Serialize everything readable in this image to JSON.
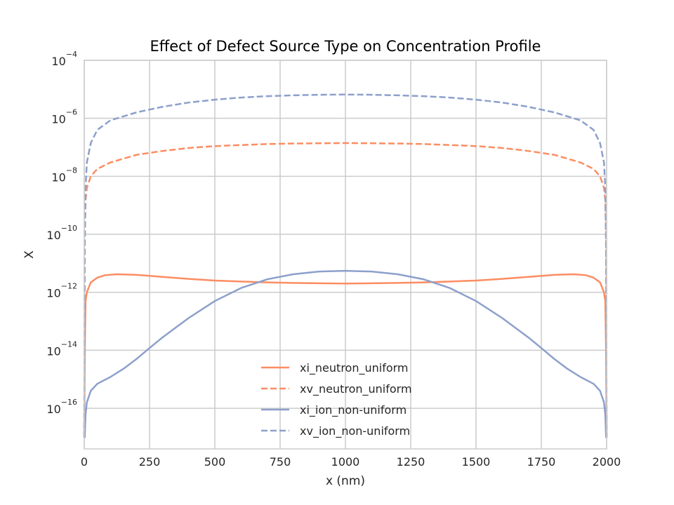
{
  "chart_data": {
    "type": "line",
    "title": "Effect of Defect Source Type on Concentration Profile",
    "xlabel": "x (nm)",
    "ylabel": "X",
    "xlim": [
      0,
      2000
    ],
    "ylim_log10": [
      -17.4,
      -4
    ],
    "yscale": "log",
    "grid": true,
    "legend_position": "lower-center",
    "x_ticks": [
      0,
      250,
      500,
      750,
      1000,
      1250,
      1500,
      1750,
      2000
    ],
    "y_tick_exponents": [
      -4,
      -6,
      -8,
      -10,
      -12,
      -14,
      -16
    ],
    "y_tick_base": "10",
    "series": [
      {
        "name": "xi_neutron_uniform",
        "color": "#fc8d62",
        "style": "solid",
        "points": [
          [
            0,
            1e-17
          ],
          [
            2,
            1e-14
          ],
          [
            5,
            5e-13
          ],
          [
            10,
            1e-12
          ],
          [
            25,
            2.2e-12
          ],
          [
            50,
            3.2e-12
          ],
          [
            80,
            3.9e-12
          ],
          [
            125,
            4.2e-12
          ],
          [
            200,
            4e-12
          ],
          [
            300,
            3.4e-12
          ],
          [
            400,
            2.9e-12
          ],
          [
            500,
            2.55e-12
          ],
          [
            600,
            2.35e-12
          ],
          [
            700,
            2.2e-12
          ],
          [
            800,
            2.1e-12
          ],
          [
            900,
            2.05e-12
          ],
          [
            1000,
            2e-12
          ],
          [
            1100,
            2.05e-12
          ],
          [
            1200,
            2.1e-12
          ],
          [
            1300,
            2.2e-12
          ],
          [
            1400,
            2.35e-12
          ],
          [
            1500,
            2.55e-12
          ],
          [
            1600,
            2.9e-12
          ],
          [
            1700,
            3.4e-12
          ],
          [
            1800,
            4e-12
          ],
          [
            1875,
            4.2e-12
          ],
          [
            1920,
            3.9e-12
          ],
          [
            1950,
            3.2e-12
          ],
          [
            1975,
            2.2e-12
          ],
          [
            1990,
            1e-12
          ],
          [
            1995,
            5e-13
          ],
          [
            1998,
            1e-14
          ],
          [
            2000,
            1e-17
          ]
        ]
      },
      {
        "name": "xv_neutron_uniform",
        "color": "#fc8d62",
        "style": "dashed",
        "points": [
          [
            0,
            1e-17
          ],
          [
            2,
            1e-10
          ],
          [
            5,
            1.5e-09
          ],
          [
            10,
            4e-09
          ],
          [
            25,
            1e-08
          ],
          [
            50,
            1.8e-08
          ],
          [
            100,
            3e-08
          ],
          [
            200,
            5.5e-08
          ],
          [
            300,
            7.5e-08
          ],
          [
            400,
            9.5e-08
          ],
          [
            500,
            1.1e-07
          ],
          [
            600,
            1.2e-07
          ],
          [
            700,
            1.3e-07
          ],
          [
            800,
            1.35e-07
          ],
          [
            900,
            1.38e-07
          ],
          [
            1000,
            1.4e-07
          ],
          [
            1100,
            1.38e-07
          ],
          [
            1200,
            1.35e-07
          ],
          [
            1300,
            1.3e-07
          ],
          [
            1400,
            1.2e-07
          ],
          [
            1500,
            1.1e-07
          ],
          [
            1600,
            9.5e-08
          ],
          [
            1700,
            7.5e-08
          ],
          [
            1800,
            5.5e-08
          ],
          [
            1900,
            3e-08
          ],
          [
            1950,
            1.8e-08
          ],
          [
            1975,
            1e-08
          ],
          [
            1990,
            4e-09
          ],
          [
            1995,
            1.5e-09
          ],
          [
            1998,
            1e-10
          ],
          [
            2000,
            1e-17
          ]
        ]
      },
      {
        "name": "xi_ion_non-uniform",
        "color": "#8da0cb",
        "style": "solid",
        "points": [
          [
            0,
            1e-17
          ],
          [
            2,
            1e-17
          ],
          [
            5,
            6e-17
          ],
          [
            10,
            1.6e-16
          ],
          [
            25,
            4e-16
          ],
          [
            50,
            7e-16
          ],
          [
            100,
            1.2e-15
          ],
          [
            150,
            2.3e-15
          ],
          [
            200,
            5e-15
          ],
          [
            250,
            1.2e-14
          ],
          [
            300,
            2.8e-14
          ],
          [
            400,
            1.3e-13
          ],
          [
            500,
            5e-13
          ],
          [
            600,
            1.4e-12
          ],
          [
            700,
            2.8e-12
          ],
          [
            800,
            4.2e-12
          ],
          [
            900,
            5.2e-12
          ],
          [
            1000,
            5.5e-12
          ],
          [
            1100,
            5.2e-12
          ],
          [
            1200,
            4.2e-12
          ],
          [
            1300,
            2.8e-12
          ],
          [
            1400,
            1.4e-12
          ],
          [
            1500,
            5e-13
          ],
          [
            1600,
            1.3e-13
          ],
          [
            1700,
            2.8e-14
          ],
          [
            1750,
            1.2e-14
          ],
          [
            1800,
            5e-15
          ],
          [
            1850,
            2.3e-15
          ],
          [
            1900,
            1.2e-15
          ],
          [
            1950,
            7e-16
          ],
          [
            1975,
            4e-16
          ],
          [
            1990,
            1.6e-16
          ],
          [
            1995,
            6e-17
          ],
          [
            1998,
            1e-17
          ],
          [
            2000,
            1e-17
          ]
        ]
      },
      {
        "name": "xv_ion_non-uniform",
        "color": "#8da0cb",
        "style": "dashed",
        "points": [
          [
            0,
            1e-17
          ],
          [
            2,
            3e-11
          ],
          [
            5,
            4e-09
          ],
          [
            10,
            3e-08
          ],
          [
            25,
            1.4e-07
          ],
          [
            50,
            4e-07
          ],
          [
            100,
            8.5e-07
          ],
          [
            200,
            1.6e-06
          ],
          [
            300,
            2.5e-06
          ],
          [
            400,
            3.5e-06
          ],
          [
            500,
            4.4e-06
          ],
          [
            600,
            5.2e-06
          ],
          [
            700,
            5.8e-06
          ],
          [
            800,
            6.2e-06
          ],
          [
            900,
            6.5e-06
          ],
          [
            1000,
            6.6e-06
          ],
          [
            1100,
            6.5e-06
          ],
          [
            1200,
            6.2e-06
          ],
          [
            1300,
            5.8e-06
          ],
          [
            1400,
            5.2e-06
          ],
          [
            1500,
            4.4e-06
          ],
          [
            1600,
            3.5e-06
          ],
          [
            1700,
            2.5e-06
          ],
          [
            1800,
            1.6e-06
          ],
          [
            1900,
            8.5e-07
          ],
          [
            1950,
            4e-07
          ],
          [
            1975,
            1.4e-07
          ],
          [
            1990,
            3e-08
          ],
          [
            1995,
            4e-09
          ],
          [
            1998,
            3e-11
          ],
          [
            2000,
            1e-17
          ]
        ]
      }
    ]
  }
}
